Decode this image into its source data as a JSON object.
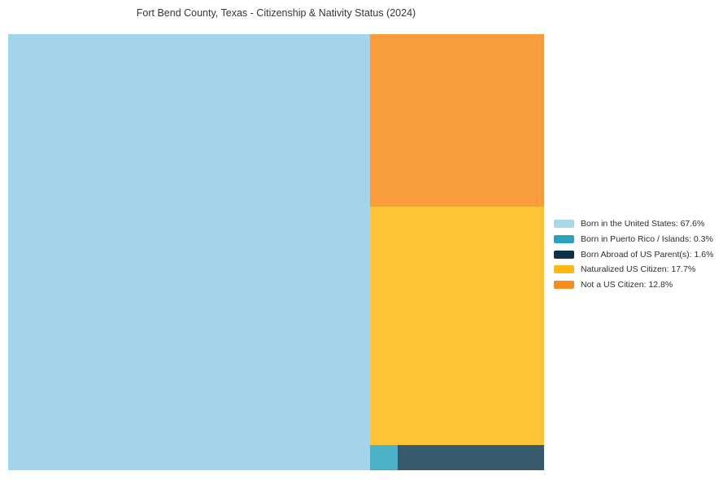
{
  "page": {
    "background": "#ffffff"
  },
  "chart_data": {
    "type": "treemap",
    "title": "Fort Bend County, Texas - Citizenship & Nativity Status (2024)",
    "unit": "%",
    "legend_position": "right",
    "total": 100,
    "segments": [
      {
        "key": "born-in-us",
        "label": "Born in the United States",
        "value": 67.6,
        "color": "#A8D7EC",
        "fill": "#A4D4EC"
      },
      {
        "key": "born-in-puerto-rico",
        "label": "Born in Puerto Rico / Islands",
        "value": 0.3,
        "color": "#2BA3BD",
        "fill": "#4BB1C7"
      },
      {
        "key": "born-abroad",
        "label": "Born Abroad of US Parent(s)",
        "value": 1.6,
        "color": "#0E3048",
        "fill": "#375A6D"
      },
      {
        "key": "naturalized",
        "label": "Naturalized US Citizen",
        "value": 17.7,
        "color": "#FDB813",
        "fill": "#FEC336"
      },
      {
        "key": "not-citizen",
        "label": "Not a US Citizen",
        "value": 12.8,
        "color": "#F78B1E",
        "fill": "#F99C3D"
      }
    ]
  }
}
